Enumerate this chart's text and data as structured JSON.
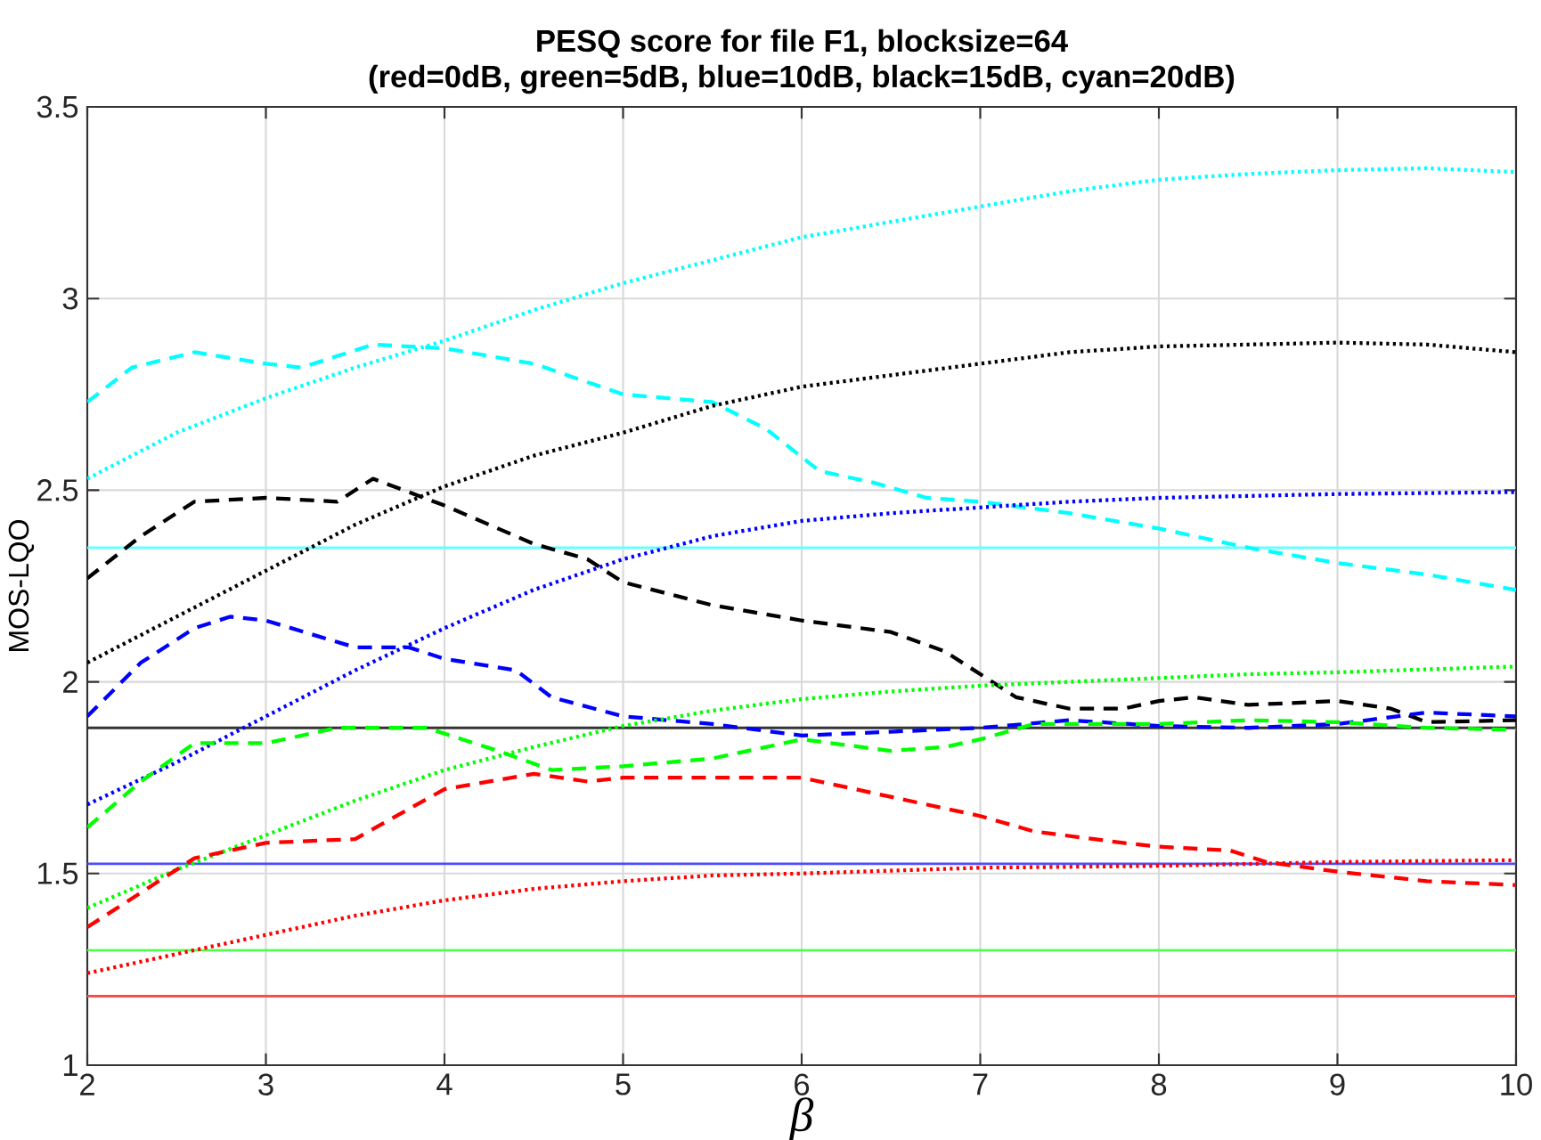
{
  "chart_data": {
    "type": "line",
    "title": "PESQ score for file F1, blocksize=64",
    "subtitle": "(red=0dB, green=5dB, blue=10dB, black=15dB, cyan=20dB)",
    "xlabel": "β",
    "ylabel": "MOS-LQO",
    "xlim": [
      2,
      10
    ],
    "ylim": [
      1,
      3.5
    ],
    "xticks": [
      2,
      3,
      4,
      5,
      6,
      7,
      8,
      9,
      10
    ],
    "yticks": [
      1,
      1.5,
      2,
      2.5,
      3,
      3.5
    ],
    "grid": true,
    "marker": "none",
    "series": [
      {
        "color": "#00ffff",
        "line_style": "dotted",
        "x": [
          2,
          2.5,
          3,
          3.5,
          4,
          4.5,
          5,
          5.5,
          6,
          6.5,
          7,
          7.5,
          8,
          8.5,
          9,
          9.5,
          10
        ],
        "values": [
          2.53,
          2.65,
          2.74,
          2.82,
          2.89,
          2.97,
          3.04,
          3.1,
          3.16,
          3.2,
          3.24,
          3.28,
          3.31,
          3.325,
          3.335,
          3.34,
          3.33
        ]
      },
      {
        "color": "#00ffff",
        "line_style": "dashed",
        "x": [
          2,
          2.25,
          2.6,
          3,
          3.2,
          3.6,
          4,
          4.5,
          5,
          5.5,
          5.8,
          6.1,
          6.4,
          6.7,
          7,
          7.5,
          8,
          8.5,
          9,
          9.5,
          10
        ],
        "values": [
          2.73,
          2.82,
          2.86,
          2.83,
          2.82,
          2.88,
          2.87,
          2.83,
          2.75,
          2.73,
          2.66,
          2.55,
          2.52,
          2.48,
          2.47,
          2.44,
          2.4,
          2.35,
          2.31,
          2.28,
          2.24
        ]
      },
      {
        "color": "#000000",
        "line_style": "dotted",
        "x": [
          2,
          2.5,
          3,
          3.5,
          4,
          4.5,
          5,
          5.5,
          6,
          6.5,
          7,
          7.5,
          8,
          8.5,
          9,
          9.5,
          10
        ],
        "values": [
          2.05,
          2.17,
          2.29,
          2.41,
          2.51,
          2.59,
          2.65,
          2.72,
          2.77,
          2.8,
          2.83,
          2.86,
          2.875,
          2.88,
          2.885,
          2.88,
          2.86
        ]
      },
      {
        "color": "#000000",
        "line_style": "dashed",
        "x": [
          2,
          2.3,
          2.6,
          3,
          3.4,
          3.6,
          4,
          4.5,
          4.8,
          5,
          5.5,
          6,
          6.5,
          6.8,
          7,
          7.2,
          7.5,
          7.8,
          8,
          8.2,
          8.5,
          9,
          9.3,
          9.5,
          10
        ],
        "values": [
          2.27,
          2.38,
          2.47,
          2.48,
          2.47,
          2.53,
          2.46,
          2.36,
          2.32,
          2.26,
          2.2,
          2.16,
          2.13,
          2.08,
          2.02,
          1.96,
          1.93,
          1.93,
          1.95,
          1.96,
          1.94,
          1.95,
          1.93,
          1.895,
          1.9
        ]
      },
      {
        "color": "#0000ff",
        "line_style": "dotted",
        "x": [
          2,
          2.5,
          3,
          3.5,
          4,
          4.5,
          5,
          5.5,
          6,
          6.5,
          7,
          7.5,
          8,
          8.5,
          9,
          10
        ],
        "values": [
          1.68,
          1.79,
          1.91,
          2.03,
          2.14,
          2.24,
          2.32,
          2.38,
          2.42,
          2.44,
          2.455,
          2.47,
          2.48,
          2.485,
          2.49,
          2.495
        ]
      },
      {
        "color": "#0000ff",
        "line_style": "dashed",
        "x": [
          2,
          2.3,
          2.6,
          2.8,
          3,
          3.5,
          3.8,
          4,
          4.4,
          4.6,
          5,
          5.5,
          6,
          6.5,
          7,
          7.5,
          8,
          8.5,
          9,
          9.5,
          10
        ],
        "values": [
          1.91,
          2.05,
          2.14,
          2.17,
          2.16,
          2.09,
          2.09,
          2.06,
          2.03,
          1.96,
          1.91,
          1.89,
          1.86,
          1.87,
          1.88,
          1.9,
          1.885,
          1.88,
          1.89,
          1.92,
          1.91
        ]
      },
      {
        "color": "#00ff00",
        "line_style": "dotted",
        "x": [
          2,
          2.5,
          3,
          3.5,
          4,
          4.5,
          5,
          5.5,
          6,
          6.5,
          7,
          7.5,
          8,
          8.5,
          9,
          10
        ],
        "values": [
          1.41,
          1.51,
          1.6,
          1.69,
          1.77,
          1.83,
          1.885,
          1.925,
          1.955,
          1.975,
          1.99,
          2.0,
          2.01,
          2.02,
          2.025,
          2.04
        ]
      },
      {
        "color": "#00ff00",
        "line_style": "dashed",
        "x": [
          2,
          2.3,
          2.6,
          3,
          3.4,
          3.9,
          4.3,
          4.6,
          5,
          5.5,
          6,
          6.5,
          6.8,
          7,
          7.3,
          8,
          8.5,
          9,
          9.5,
          10
        ],
        "values": [
          1.62,
          1.74,
          1.84,
          1.84,
          1.88,
          1.88,
          1.82,
          1.77,
          1.78,
          1.8,
          1.85,
          1.82,
          1.83,
          1.85,
          1.89,
          1.89,
          1.9,
          1.895,
          1.88,
          1.875
        ]
      },
      {
        "color": "#ff0000",
        "line_style": "dotted",
        "x": [
          2,
          2.5,
          3,
          3.5,
          4,
          4.5,
          5,
          5.5,
          6,
          7,
          8,
          9,
          10
        ],
        "values": [
          1.24,
          1.29,
          1.34,
          1.39,
          1.43,
          1.46,
          1.48,
          1.495,
          1.5,
          1.515,
          1.52,
          1.53,
          1.535
        ]
      },
      {
        "color": "#ff0000",
        "line_style": "dashed",
        "x": [
          2,
          2.3,
          2.6,
          3,
          3.5,
          4,
          4.5,
          4.8,
          5,
          5.5,
          6,
          6.5,
          7,
          7.3,
          7.8,
          8,
          8.4,
          8.6,
          9,
          9.5,
          10
        ],
        "values": [
          1.36,
          1.45,
          1.54,
          1.58,
          1.59,
          1.72,
          1.76,
          1.74,
          1.75,
          1.75,
          1.75,
          1.7,
          1.65,
          1.61,
          1.58,
          1.57,
          1.56,
          1.53,
          1.505,
          1.48,
          1.47
        ]
      }
    ],
    "ref_lines": [
      {
        "axis": "y",
        "value": 2.35,
        "color": "#66ffff",
        "line_style": "solid"
      },
      {
        "axis": "y",
        "value": 1.88,
        "color": "#333333",
        "line_style": "solid"
      },
      {
        "axis": "y",
        "value": 1.525,
        "color": "#4d4dff",
        "line_style": "solid"
      },
      {
        "axis": "y",
        "value": 1.3,
        "color": "#4dff4d",
        "line_style": "solid"
      },
      {
        "axis": "y",
        "value": 1.18,
        "color": "#ff4d4d",
        "line_style": "solid"
      }
    ]
  }
}
